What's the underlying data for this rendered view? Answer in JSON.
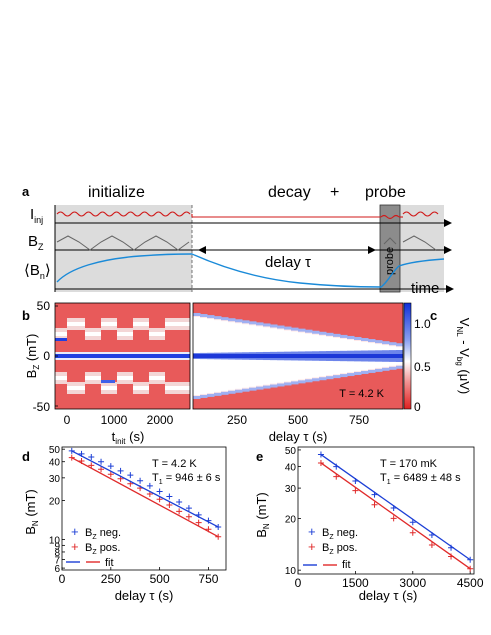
{
  "panel_a": {
    "label": "a",
    "phase_initialize": "initialize",
    "phase_decay": "decay",
    "phase_plus": "+",
    "phase_probe": "probe",
    "row_labels": [
      "I",
      "inj",
      "B",
      "Z",
      "⟨B",
      "n",
      "⟩"
    ],
    "delay_label": "delay τ",
    "probe_box_label": "probe",
    "time_label": "time"
  },
  "panel_b": {
    "label": "b",
    "ylabel": "B",
    "ylabel_sub": "Z",
    "ylabel_unit": " (mT)",
    "xlabel_left": "t",
    "xlabel_left_sub": "init",
    "xlabel_left_unit": " (s)",
    "xlabel_right": "delay τ (s)",
    "temperature": "T = 4.2 K",
    "y_ticks": [
      "50",
      "0",
      "-50"
    ],
    "x_ticks_left": [
      "0",
      "1000",
      "2000"
    ],
    "x_ticks_right": [
      "250",
      "500",
      "750"
    ]
  },
  "panel_c": {
    "label": "c",
    "cbar_ticks": [
      "1.0",
      "0.5",
      "0"
    ],
    "cbar_label_parts": [
      "V",
      "NL",
      " - V",
      "bg",
      " (μV)"
    ]
  },
  "chart_data": [
    {
      "id": "d",
      "type": "scatter",
      "label": "d",
      "xlabel": "delay τ (s)",
      "ylabel": "B",
      "ylabel_sub": "N",
      "ylabel_unit": " (mT)",
      "temperature": "T = 4.2 K",
      "t1_text": "T",
      "t1_sub": "1",
      "t1_value": " = 946 ± 6 s",
      "xlim": [
        0,
        840
      ],
      "ylim": [
        5.8,
        52
      ],
      "yscale": "log",
      "x_ticks": [
        0,
        250,
        500,
        750
      ],
      "y_ticks": [
        6,
        7,
        8,
        9,
        10,
        20,
        30,
        40,
        50
      ],
      "legend": [
        "neg.",
        "pos.",
        "fit"
      ],
      "legend_prefix": "B",
      "legend_sub": "Z",
      "series": [
        {
          "name": "B_Z neg.",
          "color": "#1c3fd6",
          "x": [
            50,
            100,
            150,
            200,
            250,
            300,
            350,
            400,
            450,
            500,
            550,
            600,
            650,
            700,
            750,
            800
          ],
          "y": [
            48.5,
            46.0,
            43.5,
            40.0,
            37.0,
            34.0,
            31.5,
            28.5,
            26.0,
            23.5,
            21.5,
            19.5,
            17.5,
            15.5,
            14.0,
            12.5
          ]
        },
        {
          "name": "B_Z pos.",
          "color": "#e02a2a",
          "x": [
            50,
            100,
            150,
            200,
            250,
            300,
            350,
            400,
            450,
            500,
            550,
            600,
            650,
            700,
            750,
            800
          ],
          "y": [
            43.0,
            40.5,
            37.5,
            35.0,
            32.0,
            29.5,
            27.0,
            25.0,
            22.5,
            20.5,
            18.5,
            16.5,
            15.0,
            13.5,
            12.0,
            10.5
          ]
        },
        {
          "name": "fit neg.",
          "color": "#1c3fd6",
          "x": [
            50,
            800
          ],
          "y": [
            48.5,
            12.5
          ]
        },
        {
          "name": "fit pos.",
          "color": "#e02a2a",
          "x": [
            50,
            800
          ],
          "y": [
            43.0,
            10.5
          ]
        }
      ]
    },
    {
      "id": "e",
      "type": "scatter",
      "label": "e",
      "xlabel": "delay τ (s)",
      "ylabel": "B",
      "ylabel_sub": "N",
      "ylabel_unit": " (mT)",
      "temperature": "T = 170 mK",
      "t1_text": "T",
      "t1_sub": "1",
      "t1_value": " = 6489 ± 48 s",
      "xlim": [
        0,
        4600
      ],
      "ylim": [
        9.5,
        52
      ],
      "yscale": "log",
      "x_ticks": [
        0,
        1500,
        3000,
        4500
      ],
      "y_ticks": [
        10,
        20,
        30,
        40,
        50
      ],
      "legend": [
        "neg.",
        "pos.",
        "fit"
      ],
      "legend_prefix": "B",
      "legend_sub": "Z",
      "series": [
        {
          "name": "B_Z neg.",
          "color": "#1c3fd6",
          "x": [
            600,
            1000,
            1500,
            2000,
            2500,
            3000,
            3500,
            4000,
            4500
          ],
          "y": [
            47.0,
            40.0,
            33.0,
            27.5,
            23.0,
            19.0,
            16.0,
            13.5,
            11.5
          ]
        },
        {
          "name": "B_Z pos.",
          "color": "#e02a2a",
          "x": [
            600,
            1000,
            1500,
            2000,
            2500,
            3000,
            3500,
            4000,
            4500
          ],
          "y": [
            42.0,
            35.0,
            29.0,
            24.0,
            20.0,
            16.5,
            14.0,
            12.0,
            10.2
          ]
        },
        {
          "name": "fit neg.",
          "color": "#1c3fd6",
          "x": [
            600,
            4500
          ],
          "y": [
            47.0,
            11.5
          ]
        },
        {
          "name": "fit pos.",
          "color": "#e02a2a",
          "x": [
            600,
            4500
          ],
          "y": [
            42.0,
            10.2
          ]
        }
      ]
    }
  ]
}
